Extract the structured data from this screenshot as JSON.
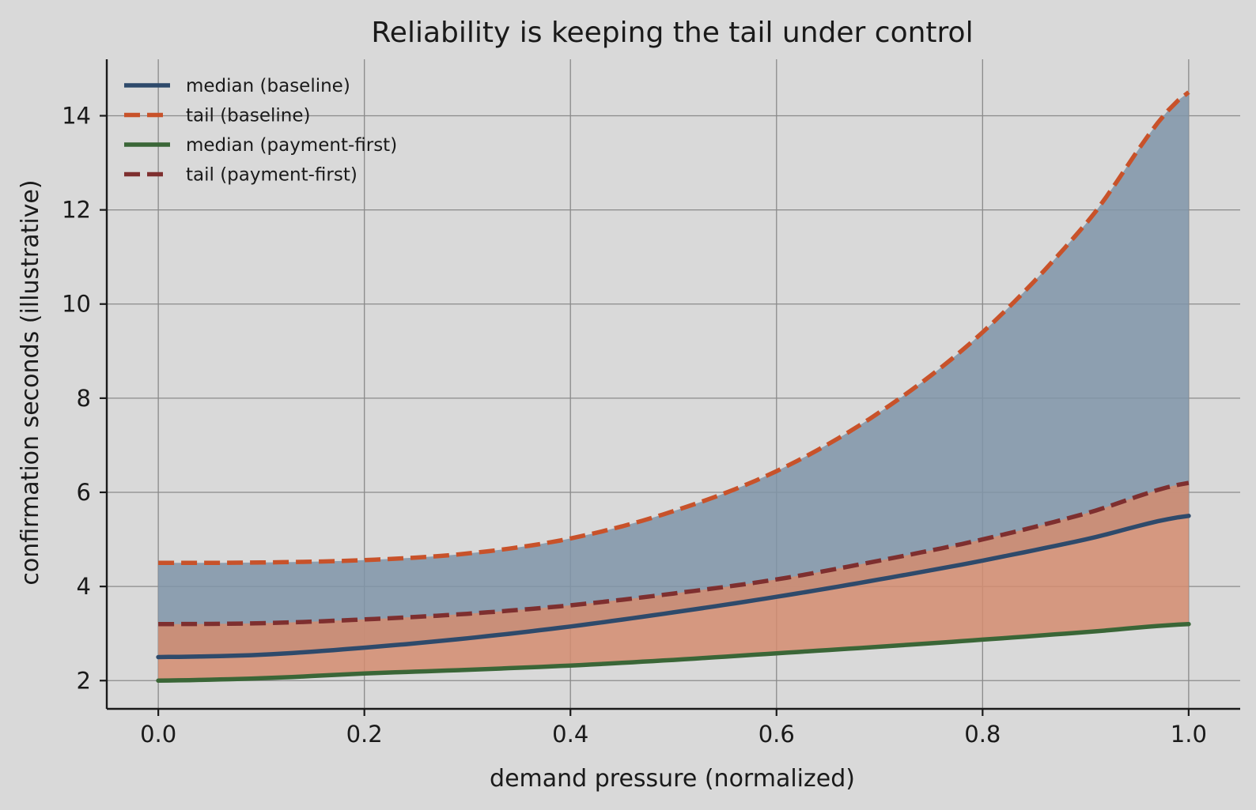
{
  "chart_data": {
    "type": "line",
    "title": "Reliability is keeping the tail under control",
    "xlabel": "demand pressure (normalized)",
    "ylabel": "confirmation seconds (illustrative)",
    "xlim": [
      -0.05,
      1.05
    ],
    "ylim": [
      1.4,
      15.2
    ],
    "x_ticks": [
      0.0,
      0.2,
      0.4,
      0.6,
      0.8,
      1.0
    ],
    "x_tick_labels": [
      "0.0",
      "0.2",
      "0.4",
      "0.6",
      "0.8",
      "1.0"
    ],
    "y_ticks": [
      2,
      4,
      6,
      8,
      10,
      12,
      14
    ],
    "y_tick_labels": [
      "2",
      "4",
      "6",
      "8",
      "10",
      "12",
      "14"
    ],
    "grid": true,
    "legend_position": "top-left",
    "x": [
      0.0,
      0.1,
      0.2,
      0.3,
      0.4,
      0.5,
      0.6,
      0.7,
      0.8,
      0.9,
      1.0
    ],
    "series": [
      {
        "name": "median (baseline)",
        "style": "solid",
        "color": "#2e4a6b",
        "values": [
          2.5,
          2.55,
          2.7,
          2.9,
          3.15,
          3.45,
          3.78,
          4.15,
          4.55,
          5.0,
          5.5
        ]
      },
      {
        "name": "tail (baseline)",
        "style": "dashed",
        "color": "#c8522a",
        "values": [
          4.5,
          4.51,
          4.56,
          4.7,
          5.02,
          5.6,
          6.45,
          7.7,
          9.4,
          11.7,
          14.5
        ]
      },
      {
        "name": "median (payment-first)",
        "style": "solid",
        "color": "#3a6637",
        "values": [
          2.0,
          2.05,
          2.15,
          2.23,
          2.32,
          2.44,
          2.58,
          2.72,
          2.87,
          3.03,
          3.2
        ]
      },
      {
        "name": "tail (payment-first)",
        "style": "dashed",
        "color": "#7e2f2f",
        "values": [
          3.2,
          3.22,
          3.3,
          3.42,
          3.6,
          3.85,
          4.15,
          4.55,
          5.0,
          5.55,
          6.2
        ]
      }
    ],
    "bands": [
      {
        "lower": "median (baseline)",
        "upper": "tail (baseline)",
        "color": "#7f94a8"
      },
      {
        "lower": "median (payment-first)",
        "upper": "tail (payment-first)",
        "color": "#d48c70"
      }
    ]
  }
}
